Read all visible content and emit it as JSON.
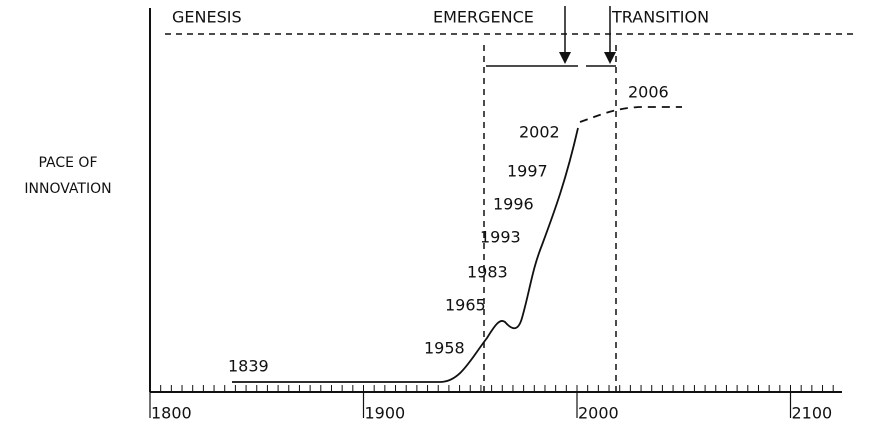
{
  "phases": [
    "GENESIS",
    "EMERGENCE",
    "TRANSITION"
  ],
  "y_axis_label": [
    "PACE OF",
    "INNOVATION"
  ],
  "x_ticks": [
    "1800",
    "1900",
    "2000",
    "2100"
  ],
  "milestones": [
    "1839",
    "1958",
    "1965",
    "1983",
    "1993",
    "1996",
    "1997",
    "2002",
    "2006"
  ]
}
